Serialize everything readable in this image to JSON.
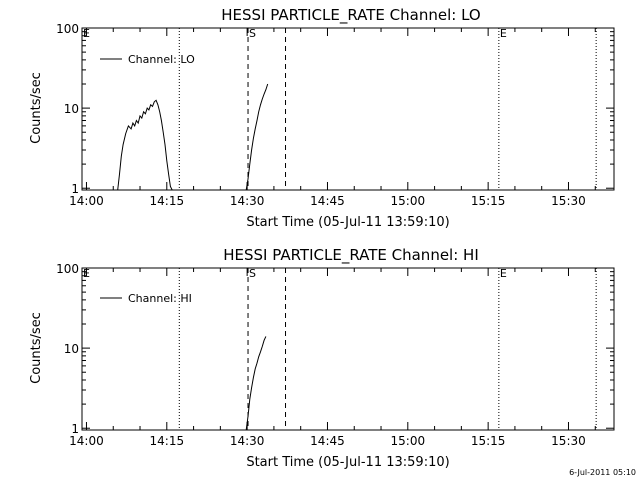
{
  "chart_data": [
    {
      "type": "line",
      "title": "HESSI PARTICLE_RATE Channel: LO",
      "xlabel": "Start Time (05-Jul-11 13:59:10)",
      "ylabel": "Counts/sec",
      "y_scale": "log",
      "ylim": [
        0.95,
        100
      ],
      "xlim": [
        "13:59:10",
        "15:38:30"
      ],
      "x_ticks": [
        "14:00",
        "14:15",
        "14:30",
        "14:45",
        "15:00",
        "15:15",
        "15:30"
      ],
      "y_ticks": [
        "1",
        "10",
        "100"
      ],
      "legend": {
        "label": "Channel: LO",
        "placement": "top-left"
      },
      "markers": [
        {
          "label": "E",
          "time": "13:59:10",
          "style": "dotted"
        },
        {
          "label": "",
          "time": "14:17:20",
          "style": "dotted"
        },
        {
          "label": "S",
          "time": "14:30:10",
          "style": "dashed"
        },
        {
          "label": "",
          "time": "14:37:10",
          "style": "dashed"
        },
        {
          "label": "E",
          "time": "15:17:00",
          "style": "dotted"
        },
        {
          "label": "",
          "time": "15:35:10",
          "style": "dotted"
        }
      ],
      "series": [
        {
          "name": "Channel: LO",
          "segments": [
            {
              "x": [
                "14:05:50",
                "14:06:10",
                "14:06:30",
                "14:06:50",
                "14:07:20",
                "14:07:50",
                "14:08:20",
                "14:08:40",
                "14:09:00",
                "14:09:20",
                "14:09:40",
                "14:10:00",
                "14:10:20",
                "14:10:40",
                "14:11:00",
                "14:11:20",
                "14:11:40",
                "14:12:00",
                "14:12:20",
                "14:12:40",
                "14:13:00",
                "14:13:20",
                "14:13:40",
                "14:14:00",
                "14:14:20",
                "14:14:40",
                "14:15:00",
                "14:15:20",
                "14:15:40",
                "14:16:00"
              ],
              "y": [
                0.95,
                1.5,
                2.5,
                3.5,
                4.8,
                6.0,
                5.5,
                6.5,
                6.0,
                7.0,
                6.5,
                8.0,
                7.5,
                9.0,
                8.5,
                10.0,
                9.5,
                11.0,
                10.5,
                12.0,
                12.5,
                11.0,
                9.0,
                7.0,
                5.0,
                3.5,
                2.2,
                1.5,
                1.05,
                0.95
              ]
            },
            {
              "x": [
                "14:29:50",
                "14:30:10",
                "14:30:30",
                "14:30:50",
                "14:31:10",
                "14:31:30",
                "14:31:50",
                "14:32:10",
                "14:32:30",
                "14:32:50",
                "14:33:10",
                "14:33:30",
                "14:33:50"
              ],
              "y": [
                0.95,
                1.3,
                2.0,
                3.0,
                4.2,
                5.5,
                7.0,
                9.0,
                11.0,
                13.0,
                15.0,
                17.0,
                20.0
              ]
            }
          ]
        }
      ]
    },
    {
      "type": "line",
      "title": "HESSI PARTICLE_RATE Channel: HI",
      "xlabel": "Start Time (05-Jul-11 13:59:10)",
      "ylabel": "Counts/sec",
      "y_scale": "log",
      "ylim": [
        0.95,
        100
      ],
      "xlim": [
        "13:59:10",
        "15:38:30"
      ],
      "x_ticks": [
        "14:00",
        "14:15",
        "14:30",
        "14:45",
        "15:00",
        "15:15",
        "15:30"
      ],
      "y_ticks": [
        "1",
        "10",
        "100"
      ],
      "legend": {
        "label": "Channel: HI",
        "placement": "top-left"
      },
      "markers": [
        {
          "label": "E",
          "time": "13:59:10",
          "style": "dotted"
        },
        {
          "label": "",
          "time": "14:17:20",
          "style": "dotted"
        },
        {
          "label": "S",
          "time": "14:30:10",
          "style": "dashed"
        },
        {
          "label": "",
          "time": "14:37:10",
          "style": "dashed"
        },
        {
          "label": "E",
          "time": "15:17:00",
          "style": "dotted"
        },
        {
          "label": "",
          "time": "15:35:10",
          "style": "dotted"
        }
      ],
      "series": [
        {
          "name": "Channel: HI",
          "segments": [
            {
              "x": [
                "14:29:50",
                "14:30:10",
                "14:30:30",
                "14:30:50",
                "14:31:10",
                "14:31:30",
                "14:31:50",
                "14:32:10",
                "14:32:30",
                "14:32:50",
                "14:33:10",
                "14:33:30"
              ],
              "y": [
                0.95,
                1.4,
                2.3,
                3.2,
                4.3,
                5.5,
                6.5,
                7.8,
                9.0,
                10.5,
                12.5,
                14.0
              ]
            }
          ]
        }
      ]
    }
  ],
  "footer": {
    "timestamp": "6-Jul-2011 05:10"
  }
}
